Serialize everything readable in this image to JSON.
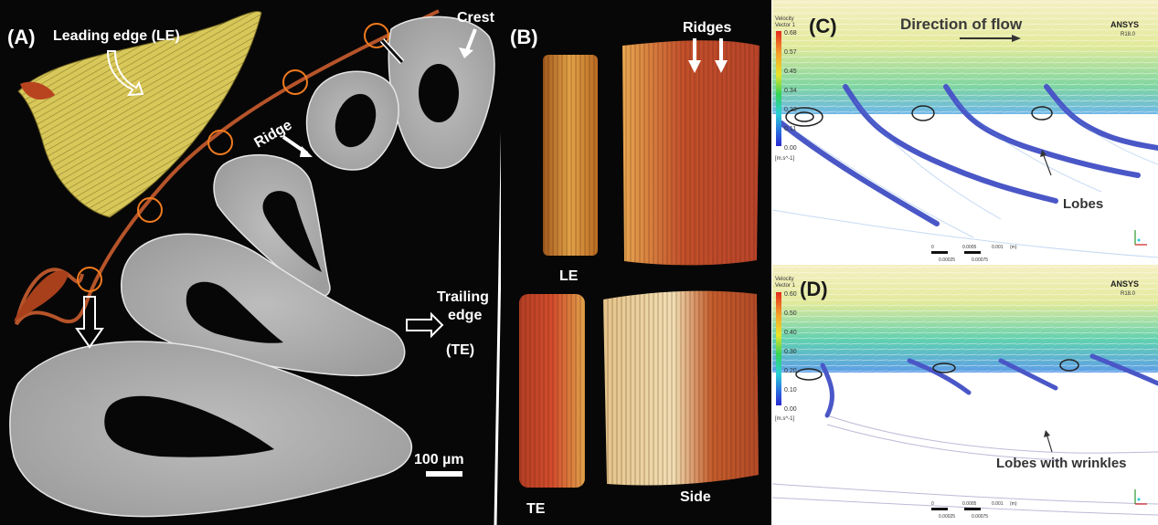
{
  "panel_a": {
    "label": "(A)",
    "leading_edge": "Leading edge (LE)",
    "crest": "Crest",
    "ridge": "Ridge",
    "trailing_edge_line1": "Trailing",
    "trailing_edge_line2": "edge",
    "trailing_edge_line3": "(TE)",
    "scale_bar": "100 µm"
  },
  "panel_b": {
    "label": "(B)",
    "ridges": "Ridges",
    "le": "LE",
    "te": "TE",
    "side": "Side"
  },
  "panel_c": {
    "label": "(C)",
    "direction": "Direction of flow",
    "lobes": "Lobes",
    "brand": "ANSYS",
    "version": "R18.0",
    "legend_title_1": "Velocity",
    "legend_title_2": "Vector 1",
    "legend_values": [
      "0.68",
      "0.57",
      "0.45",
      "0.34",
      "0.23",
      "0.11",
      "0.00"
    ],
    "legend_unit": "[m.s^-1]",
    "scale_top": [
      "0",
      "0.0005",
      "0.001",
      "(m)"
    ],
    "scale_bottom": [
      "0.00025",
      "0.00075"
    ]
  },
  "panel_d": {
    "label": "(D)",
    "lobes": "Lobes with wrinkles",
    "brand": "ANSYS",
    "version": "R18.0",
    "legend_title_1": "Velocity",
    "legend_title_2": "Vector 1",
    "legend_values": [
      "0.60",
      "0.50",
      "0.40",
      "0.30",
      "0.20",
      "0.10",
      "0.00"
    ],
    "legend_unit": "[m.s^-1]",
    "scale_top": [
      "0",
      "0.0005",
      "0.001",
      "(m)"
    ],
    "scale_bottom": [
      "0.00025",
      "0.00075"
    ]
  },
  "colors": {
    "background_dark": "#070707",
    "fiber_yellow": "#d9c84e",
    "feather_orange": "#b6542a",
    "circle_orange": "#f07b1f",
    "section_grey": "#c4c4c4",
    "flow_blue": "#4a57c7"
  }
}
